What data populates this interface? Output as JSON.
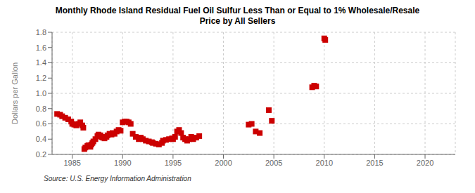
{
  "chart_data": {
    "type": "scatter",
    "title": "Monthly Rhode Island Residual Fuel Oil Sulfur Less Than or Equal to 1% Wholesale/Resale\nPrice by All Sellers",
    "ylabel": "Dollars per Gallon",
    "source": "Source: U.S. Energy Information Administration",
    "color": "#cc0000",
    "marker": "square",
    "grid": true,
    "xlim": [
      1983,
      2023
    ],
    "ylim": [
      0.2,
      1.8
    ],
    "xticks": [
      1985,
      1990,
      1995,
      2000,
      2005,
      2010,
      2015,
      2020
    ],
    "yticks": [
      0.2,
      0.4,
      0.6,
      0.8,
      {
        "value": 1.0,
        "label": "1.0"
      },
      1.2,
      1.4,
      1.6,
      1.8
    ],
    "x": [
      1983.5,
      1983.8,
      1984.0,
      1984.3,
      1984.6,
      1984.9,
      1985.0,
      1985.2,
      1985.4,
      1985.6,
      1985.8,
      1986.0,
      1986.1,
      1986.2,
      1986.3,
      1986.5,
      1986.6,
      1986.8,
      1986.9,
      1987.0,
      1987.1,
      1987.3,
      1987.5,
      1987.6,
      1987.8,
      1987.9,
      1988.0,
      1988.2,
      1988.4,
      1988.5,
      1988.7,
      1988.9,
      1989.0,
      1989.2,
      1989.4,
      1989.6,
      1989.8,
      1990.0,
      1990.2,
      1990.4,
      1990.6,
      1990.8,
      1991.0,
      1991.3,
      1991.6,
      1991.8,
      1992.0,
      1992.3,
      1992.6,
      1992.9,
      1993.0,
      1993.3,
      1993.6,
      1993.9,
      1994.0,
      1994.3,
      1994.6,
      1994.9,
      1995.0,
      1995.2,
      1995.4,
      1995.6,
      1995.8,
      1996.0,
      1996.2,
      1996.4,
      1996.6,
      1996.8,
      1997.0,
      1997.3,
      1997.6,
      2002.5,
      2002.8,
      2003.2,
      2003.6,
      2004.5,
      2004.8,
      2008.8,
      2009.0,
      2009.2,
      2010.0,
      2010.1
    ],
    "values": [
      0.73,
      0.72,
      0.7,
      0.68,
      0.66,
      0.63,
      0.6,
      0.59,
      0.58,
      0.6,
      0.62,
      0.58,
      0.55,
      0.27,
      0.29,
      0.31,
      0.32,
      0.3,
      0.33,
      0.35,
      0.37,
      0.4,
      0.44,
      0.46,
      0.45,
      0.43,
      0.42,
      0.41,
      0.43,
      0.45,
      0.47,
      0.46,
      0.48,
      0.47,
      0.5,
      0.52,
      0.51,
      0.62,
      0.63,
      0.63,
      0.62,
      0.6,
      0.47,
      0.43,
      0.4,
      0.42,
      0.4,
      0.38,
      0.37,
      0.36,
      0.35,
      0.34,
      0.33,
      0.35,
      0.38,
      0.39,
      0.4,
      0.41,
      0.4,
      0.43,
      0.5,
      0.52,
      0.48,
      0.42,
      0.4,
      0.38,
      0.4,
      0.43,
      0.4,
      0.42,
      0.44,
      0.59,
      0.6,
      0.5,
      0.48,
      0.78,
      0.64,
      1.08,
      1.1,
      1.09,
      1.72,
      1.7
    ]
  }
}
